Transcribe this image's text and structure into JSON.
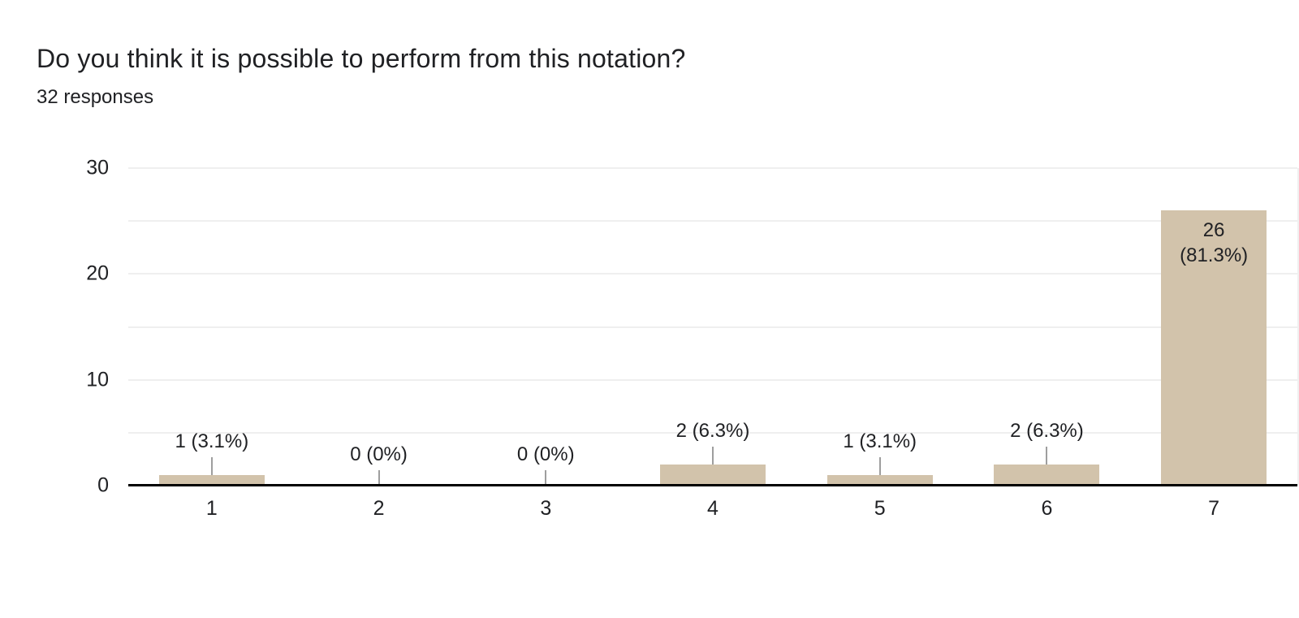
{
  "header": {
    "title": "Do you think it is possible to perform from this notation?",
    "subtitle": "32 responses"
  },
  "chart_data": {
    "type": "bar",
    "title": "Do you think it is possible to perform from this notation?",
    "subtitle": "32 responses",
    "categories": [
      "1",
      "2",
      "3",
      "4",
      "5",
      "6",
      "7"
    ],
    "values": [
      1,
      0,
      0,
      2,
      1,
      2,
      26
    ],
    "bar_labels": [
      "1 (3.1%)",
      "0 (0%)",
      "0 (0%)",
      "2 (6.3%)",
      "1 (3.1%)",
      "2 (6.3%)",
      "26 (81.3%)"
    ],
    "bar_label_placement": [
      "above",
      "above",
      "above",
      "above",
      "above",
      "above",
      "inside"
    ],
    "inside_label_lines": [
      "26",
      "(81.3%)"
    ],
    "total_responses": 32,
    "xlabel": "",
    "ylabel": "",
    "ylim": [
      0,
      30
    ],
    "yticks_labeled": [
      0,
      10,
      20,
      30
    ],
    "gridline_step": 5,
    "grid": true,
    "legend": "none",
    "colors": {
      "background": "#ffffff",
      "bar_fill": "#d2c3ab",
      "gridline": "#efefef",
      "axis_line": "#000000",
      "callout_line": "#9e9e9e",
      "text": "#202124"
    }
  }
}
